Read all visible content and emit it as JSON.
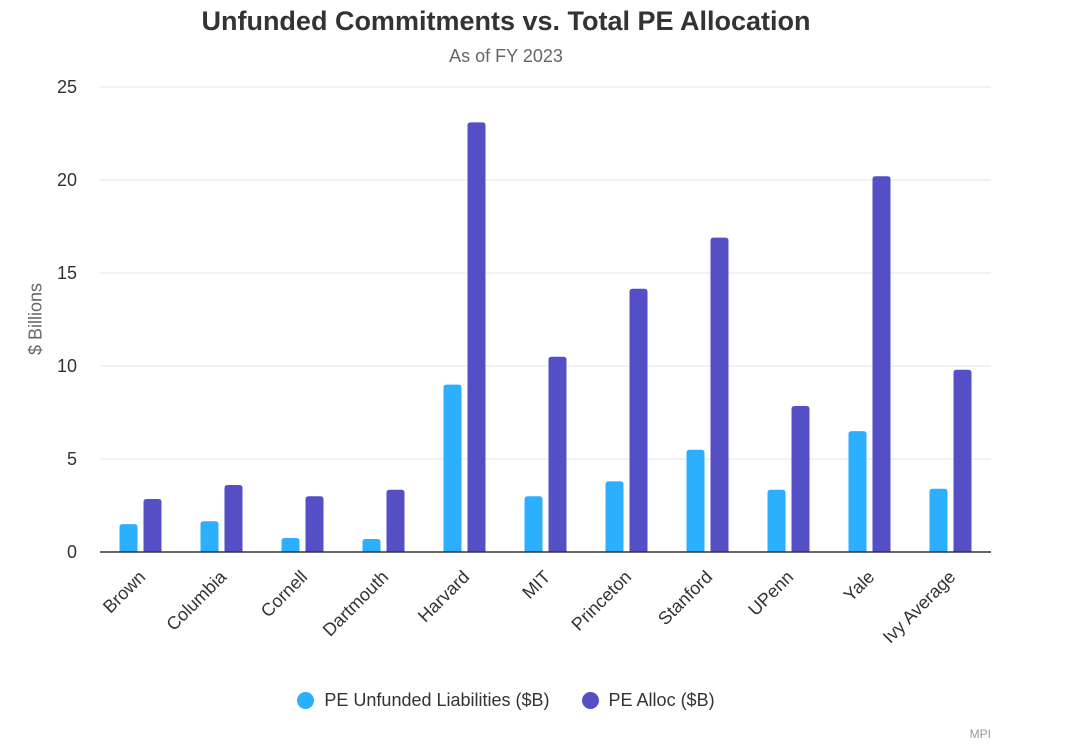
{
  "chart_data": {
    "type": "bar",
    "title": "Unfunded Commitments vs. Total PE Allocation",
    "subtitle": "As of FY 2023",
    "xlabel": "",
    "ylabel": "$ Billions",
    "ylim": [
      0,
      25
    ],
    "yticks": [
      "0",
      "5",
      "10",
      "15",
      "20",
      "25"
    ],
    "categories": [
      "Brown",
      "Columbia",
      "Cornell",
      "Dartmouth",
      "Harvard",
      "MIT",
      "Princeton",
      "Stanford",
      "UPenn",
      "Yale",
      "Ivy Average"
    ],
    "series": [
      {
        "name": "PE Unfunded Liabilities ($B)",
        "color": "#2caffe",
        "values": [
          1.5,
          1.65,
          0.75,
          0.7,
          9.0,
          3.0,
          3.8,
          5.5,
          3.35,
          6.5,
          3.4
        ]
      },
      {
        "name": "PE Alloc ($B)",
        "color": "#544fc5",
        "values": [
          2.85,
          3.6,
          3.0,
          3.35,
          23.1,
          10.5,
          14.15,
          16.9,
          7.85,
          20.2,
          9.8
        ]
      }
    ],
    "grid": true,
    "legend_position": "bottom-center",
    "credit": "MPI"
  }
}
